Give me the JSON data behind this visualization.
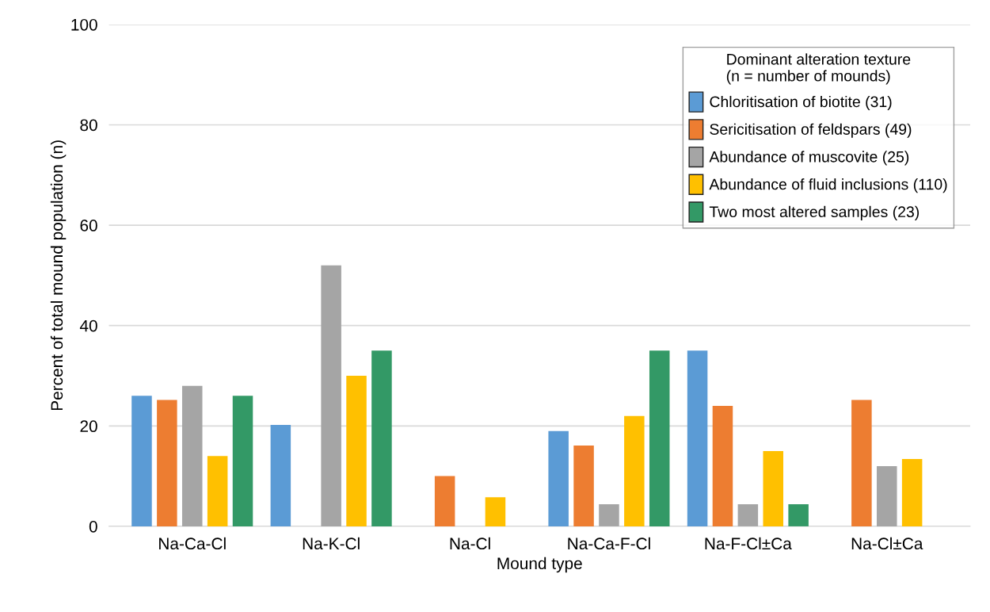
{
  "chart_data": {
    "type": "bar",
    "xlabel": "Mound type",
    "ylabel": "Percent of total mound population (n)",
    "categories": [
      "Na-Ca-Cl",
      "Na-K-Cl",
      "Na-Cl",
      "Na-Ca-F-Cl",
      "Na-F-Cl±Ca",
      "Na-Cl±Ca"
    ],
    "series": [
      {
        "name": "Chloritisation of biotite (31)",
        "color": "#5b9bd5",
        "values": [
          26,
          20.2,
          0,
          19,
          35,
          0
        ]
      },
      {
        "name": "Sericitisation of feldspars (49)",
        "color": "#ed7d31",
        "values": [
          25.2,
          0,
          10,
          16.1,
          24,
          25.2
        ]
      },
      {
        "name": "Abundance of muscovite (25)",
        "color": "#a5a5a5",
        "values": [
          28,
          52,
          0,
          4.4,
          4.4,
          12
        ]
      },
      {
        "name": "Abundance of fluid inclusions (110)",
        "color": "#ffc000",
        "values": [
          14,
          30,
          5.8,
          22,
          15,
          13.4
        ]
      },
      {
        "name": "Two most altered samples (23)",
        "color": "#339966",
        "values": [
          26,
          35,
          0,
          35,
          4.4,
          0
        ]
      }
    ],
    "legend_title": "Dominant alteration texture\n(n = number of mounds)",
    "legend": "top right",
    "ylim": [
      0,
      100
    ],
    "yticks": [
      0,
      20,
      40,
      60,
      80,
      100
    ],
    "grid": "y"
  }
}
